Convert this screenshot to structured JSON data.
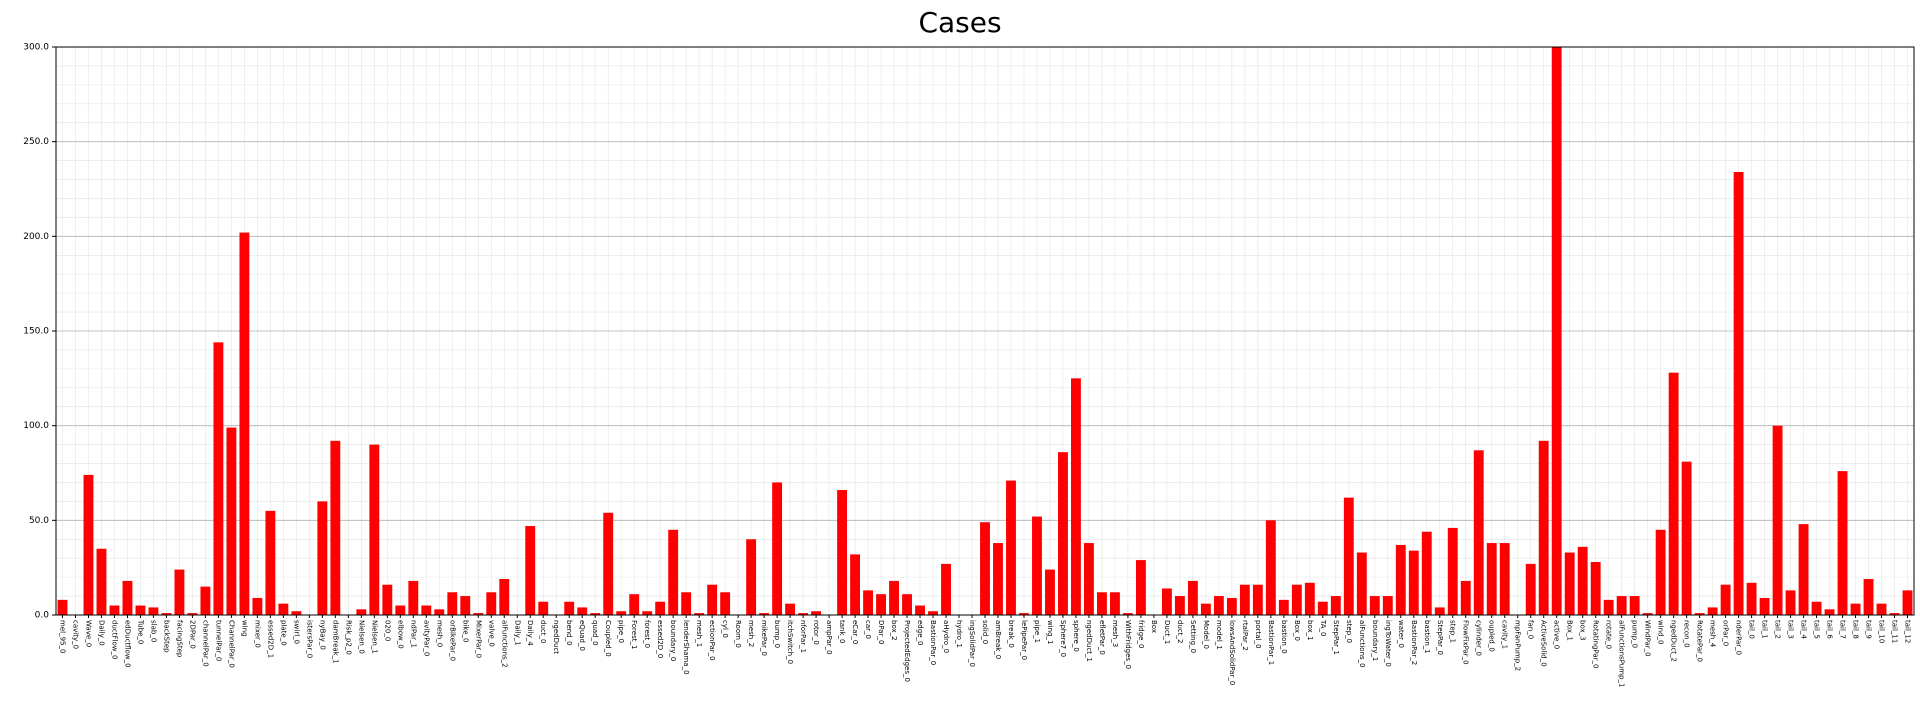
{
  "chart_data": {
    "type": "bar",
    "title": "Cases",
    "color": "#ff0000",
    "grid": true,
    "ylim": [
      0,
      300
    ],
    "yticks": [
      {
        "value": 0,
        "label": "0.0"
      },
      {
        "value": 50,
        "label": "50.0"
      },
      {
        "value": 100,
        "label": "100.0"
      },
      {
        "value": 150,
        "label": "150.0"
      },
      {
        "value": 200,
        "label": "200.0"
      },
      {
        "value": 250,
        "label": "250.0"
      },
      {
        "value": 300,
        "label": "300.0"
      }
    ],
    "categories": [
      "mel_95_0",
      "cavity_0",
      "Wave_0",
      "Daily_0",
      "ductFlow_0",
      "edDuctflow_0",
      "Tube_0",
      "slab_0",
      "backStep",
      "facingStep",
      "2DPar_0",
      "channelPar_0",
      "tunnelPar_0",
      "ChannelPar_0",
      "wing",
      "mixer_0",
      "essed2D_1",
      "plate_0",
      "swirl_0",
      "istersPar_0",
      "nyBay_0",
      "damBreak_1",
      "Risk_p2_0",
      "Nielsen_0",
      "Nielsen_1",
      "020_0",
      "elbow_0",
      "ndPar_1",
      "avityPar_0",
      "mesh_0",
      "orBikePar_0",
      "bike_0",
      "MixerPar_0",
      "valve_0",
      "alFunctions_2",
      "Daily_1",
      "Daily_4",
      "duct_0",
      "ngedDuct",
      "bend_0",
      "eQuad_0",
      "quad_0",
      "Coupled_0",
      "pipe_0",
      "Forest_1",
      "forest_0",
      "essed2D_0",
      "boundary_0",
      "lenderShama_0",
      "mesh_1",
      "ectionPar_0",
      "cyl_0",
      "Room_0",
      "mesh_2",
      "mikePar_0",
      "bump_0",
      "itchSwitch_0",
      "nforPar_1",
      "rotor_0",
      "ampPar_0",
      "tank_0",
      "eCar_0",
      "car_0",
      "DPar_0",
      "box_2",
      "ProjectedEdges_0",
      "edge_0",
      "BastionPar_0",
      "aHydro_0",
      "hydro_1",
      "ingSolidPar_0",
      "solid_0",
      "amBreak_0",
      "break_0",
      "lePipePar_0",
      "pipe_1",
      "wing_1",
      "Sphere7_0",
      "sphere_0",
      "ngedDuct_1",
      "efletPar_0",
      "mesh_3",
      "WithFridges_0",
      "fridge_0",
      "Box",
      "Duct_1",
      "duct_2",
      "Setting_0",
      "Model_0",
      "model_1",
      "lowsAndSolidPar_0",
      "rtalPar_2",
      "portal_0",
      "BastionPar_1",
      "bastion_0",
      "Box_0",
      "box_1",
      "TA_0",
      "StepPar_1",
      "step_0",
      "alFunctions_0",
      "boundary_1",
      "ingToWater_0",
      "water_0",
      "BastionPar_2",
      "bastion_1",
      "StepPar_0",
      "step_1",
      "FlowFixPar_0",
      "cylinder_0",
      "oupled_0",
      "cavity_1",
      "mpFanPump_2",
      "fan_0",
      "ActiveSolid_0",
      "active_0",
      "Box_1",
      "box_3",
      "RotatingPar_0",
      "rotate_0",
      "alFunctionsPump_1",
      "pump_0",
      "WindPar_0",
      "wind_0",
      "ngedDuct_2",
      "recon_0",
      "RotatePar_0",
      "mesh_4",
      "orPar_0",
      "nderPar_0",
      "tail_0",
      "tail_1",
      "tail_2",
      "tail_3",
      "tail_4",
      "tail_5",
      "tail_6",
      "tail_7",
      "tail_8",
      "tail_9",
      "tail_10",
      "tail_11",
      "tail_12"
    ],
    "values": [
      8,
      0,
      74,
      35,
      5,
      18,
      5,
      4,
      1,
      24,
      1,
      15,
      144,
      99,
      202,
      9,
      55,
      6,
      2,
      0,
      60,
      92,
      0,
      3,
      90,
      16,
      5,
      18,
      5,
      3,
      12,
      10,
      1,
      12,
      19,
      0,
      47,
      7,
      0,
      7,
      4,
      1,
      54,
      2,
      11,
      2,
      7,
      45,
      12,
      1,
      16,
      12,
      0,
      40,
      1,
      70,
      6,
      1,
      2,
      0,
      66,
      32,
      13,
      11,
      18,
      11,
      5,
      2,
      27,
      0,
      0,
      49,
      38,
      71,
      1,
      52,
      24,
      86,
      125,
      38,
      12,
      12,
      1,
      29,
      0,
      14,
      10,
      18,
      6,
      10,
      9,
      16,
      16,
      50,
      8,
      16,
      17,
      7,
      10,
      62,
      33,
      10,
      10,
      37,
      34,
      44,
      4,
      46,
      18,
      87,
      38,
      38,
      0,
      27,
      92,
      300,
      33,
      36,
      28,
      8,
      10,
      10,
      1,
      45,
      128,
      81,
      1,
      4,
      16,
      234,
      17,
      9,
      100,
      13,
      48,
      7,
      3,
      76,
      6,
      19,
      6,
      1,
      13
    ]
  }
}
